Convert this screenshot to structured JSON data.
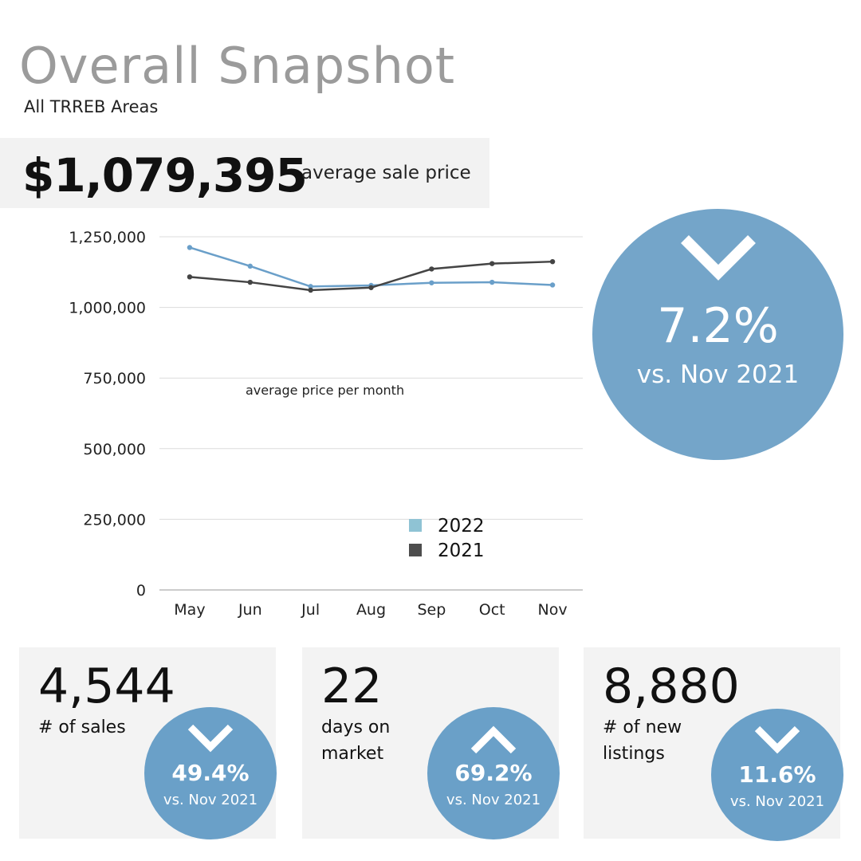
{
  "header": {
    "title": "Overall Snapshot",
    "subtitle": "All TRREB Areas"
  },
  "price": {
    "value": "$1,079,395",
    "label": "average sale price"
  },
  "big_change": {
    "direction": "down",
    "icon": "chevron-down-icon",
    "percent": "7.2%",
    "comparison": "vs. Nov 2021"
  },
  "cards": [
    {
      "value": "4,544",
      "label": "# of sales",
      "change": {
        "direction": "down",
        "icon": "chevron-down-icon",
        "percent": "49.4%",
        "comparison": "vs. Nov 2021"
      }
    },
    {
      "value": "22",
      "label": "days on market",
      "change": {
        "direction": "up",
        "icon": "chevron-up-icon",
        "percent": "69.2%",
        "comparison": "vs. Nov 2021"
      }
    },
    {
      "value": "8,880",
      "label": "# of new listings",
      "change": {
        "direction": "down",
        "icon": "chevron-down-icon",
        "percent": "11.6%",
        "comparison": "vs. Nov 2021"
      }
    }
  ],
  "colors": {
    "series_2022": "#6a9fc9",
    "series_2021": "#444444",
    "legend_2022": "#8fc3d4",
    "legend_2021": "#4d4d4d",
    "circle": "#74a5c9",
    "title_gray": "#9b9b9b"
  },
  "chart_data": {
    "type": "line",
    "annotation": "average price per month",
    "categories": [
      "May",
      "Jun",
      "Jul",
      "Aug",
      "Sep",
      "Oct",
      "Nov"
    ],
    "series": [
      {
        "name": "2022",
        "values": [
          1212000,
          1146000,
          1074000,
          1078000,
          1087000,
          1089000,
          1079395
        ]
      },
      {
        "name": "2021",
        "values": [
          1108000,
          1089000,
          1061000,
          1070000,
          1136000,
          1155000,
          1162000
        ]
      }
    ],
    "ylim": [
      0,
      1250000
    ],
    "yticks": [
      0,
      250000,
      500000,
      750000,
      1000000,
      1250000
    ],
    "ytick_labels": [
      "0",
      "250,000",
      "500,000",
      "750,000",
      "1,000,000",
      "1,250,000"
    ],
    "grid": true,
    "legend_position": "bottom-center"
  }
}
